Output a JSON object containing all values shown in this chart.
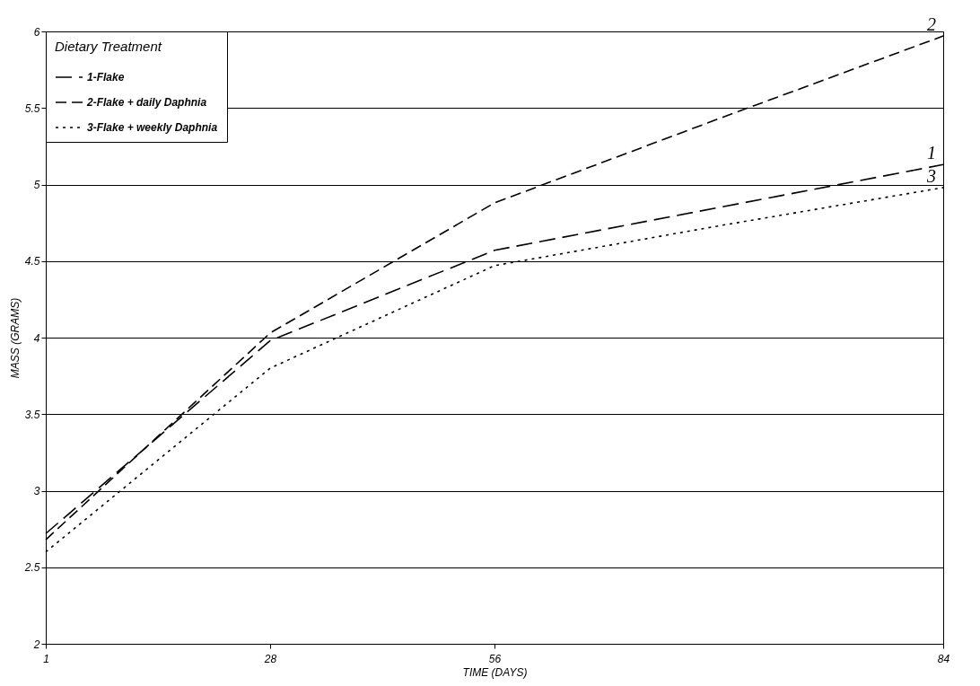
{
  "chart_data": {
    "type": "line",
    "xlabel": "TIME (DAYS)",
    "ylabel": "MASS (GRAMS)",
    "legend_title": "Dietary Treatment",
    "categories": [
      "1",
      "28",
      "56",
      null,
      "84"
    ],
    "series": [
      {
        "name": "1-Flake",
        "color": "#000000",
        "line_style": "dashed",
        "values": [
          2.72,
          3.98,
          4.57,
          4.85,
          5.13
        ]
      },
      {
        "name": "2-Flake + daily Daphnia",
        "color": "#000000",
        "line_style": "dashed",
        "values": [
          2.68,
          4.03,
          4.88,
          5.43,
          5.97
        ]
      },
      {
        "name": "3-Flake + weekly Daphnia",
        "color": "#000000",
        "line_style": "dotted",
        "values": [
          2.6,
          3.8,
          4.47,
          4.73,
          4.98
        ]
      }
    ],
    "ylim": [
      2,
      6
    ],
    "yticks": [
      2,
      2.5,
      3,
      3.5,
      4,
      4.5,
      5,
      5.5,
      6
    ],
    "grid": "y",
    "legend": "top left",
    "marker": "none",
    "annotations": [
      {
        "text": "1",
        "x": "84",
        "y": 5.13
      },
      {
        "text": "2",
        "x": "84",
        "y": 5.97
      },
      {
        "text": "3",
        "x": "84",
        "y": 4.98
      }
    ]
  }
}
